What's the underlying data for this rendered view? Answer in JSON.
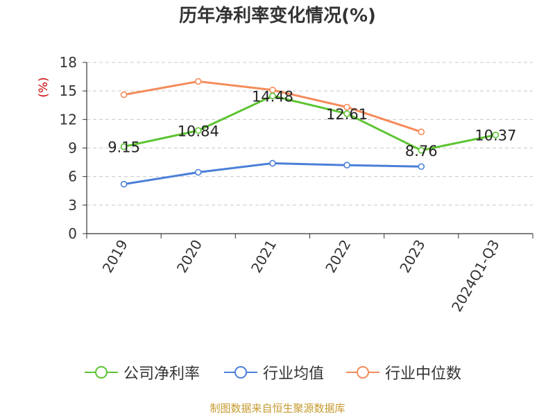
{
  "title": "历年净利率变化情况(%)",
  "source": "制图数据来自恒生聚源数据库",
  "chart_data": {
    "type": "line",
    "title": "历年净利率变化情况(%)",
    "ylabel": "(%)",
    "xlabel": "",
    "categories": [
      "2019",
      "2020",
      "2021",
      "2022",
      "2023",
      "2024Q1-Q3"
    ],
    "ylim": [
      0,
      18
    ],
    "yticks": [
      0,
      3,
      6,
      9,
      12,
      15,
      18
    ],
    "grid": true,
    "legend_position": "bottom",
    "series": [
      {
        "name": "公司净利率",
        "color": "#5cc431",
        "values": [
          9.15,
          10.84,
          14.48,
          12.61,
          8.76,
          10.37
        ],
        "labels": [
          "9.15",
          "10.84",
          "14.48",
          "12.61",
          "8.76",
          "10.37"
        ]
      },
      {
        "name": "行业均值",
        "color": "#4a7fd8",
        "values": [
          5.2,
          6.45,
          7.4,
          7.2,
          7.05,
          null
        ],
        "labels": null
      },
      {
        "name": "行业中位数",
        "color": "#f58b5a",
        "values": [
          14.6,
          16.0,
          15.1,
          13.3,
          10.7,
          null
        ],
        "labels": null
      }
    ]
  }
}
